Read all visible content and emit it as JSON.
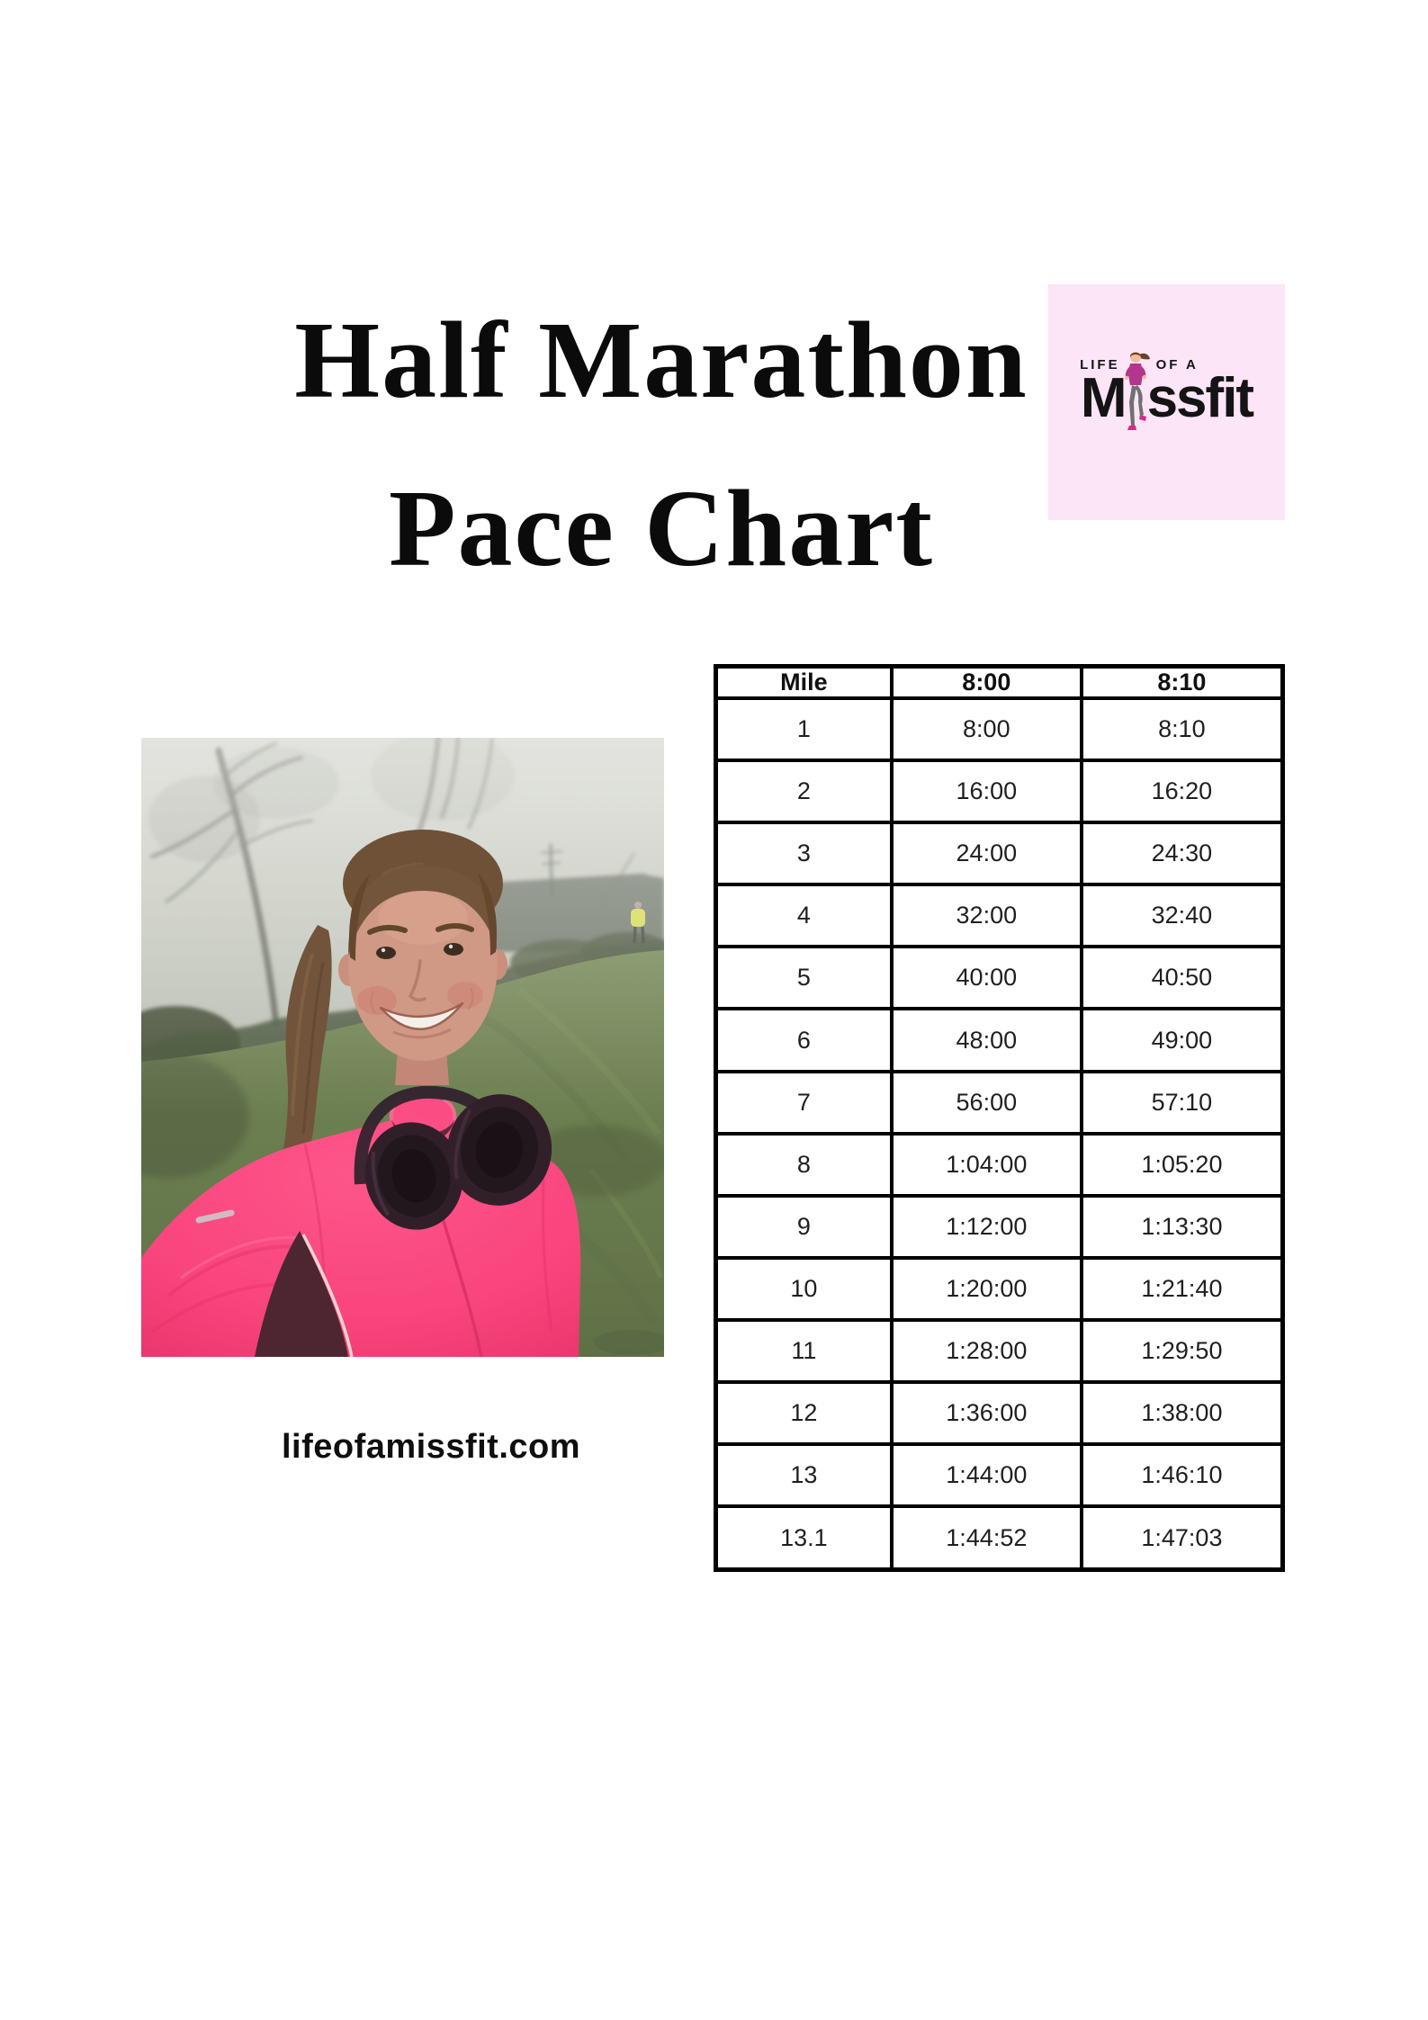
{
  "page": {
    "background": "#ffffff",
    "title_line1": "Half Marathon",
    "title_line2": "Pace Chart",
    "website": "lifeofamissfit.com"
  },
  "logo": {
    "background_color": "#fbe5f7",
    "life_text": "LIFE",
    "of_a_text": "OF A",
    "brand_m": "M",
    "brand_ssfit": "ssfit",
    "runner_icon": "running-woman-icon",
    "jacket_magenta": "#b2368e"
  },
  "photo": {
    "jacket_pink": "#f93f79",
    "grass_green": "#66794a",
    "sky_fog_gray": "#bfc3b7",
    "headphones_black": "#2a1823",
    "hi_vis_yellow": "#d8e14b"
  },
  "table": {
    "border_color": "#000000",
    "text_color": "#1f1f1f",
    "columns": [
      "Mile",
      "8:00",
      "8:10"
    ],
    "rows": [
      [
        "1",
        "8:00",
        "8:10"
      ],
      [
        "2",
        "16:00",
        "16:20"
      ],
      [
        "3",
        "24:00",
        "24:30"
      ],
      [
        "4",
        "32:00",
        "32:40"
      ],
      [
        "5",
        "40:00",
        "40:50"
      ],
      [
        "6",
        "48:00",
        "49:00"
      ],
      [
        "7",
        "56:00",
        "57:10"
      ],
      [
        "8",
        "1:04:00",
        "1:05:20"
      ],
      [
        "9",
        "1:12:00",
        "1:13:30"
      ],
      [
        "10",
        "1:20:00",
        "1:21:40"
      ],
      [
        "11",
        "1:28:00",
        "1:29:50"
      ],
      [
        "12",
        "1:36:00",
        "1:38:00"
      ],
      [
        "13",
        "1:44:00",
        "1:46:10"
      ],
      [
        "13.1",
        "1:44:52",
        "1:47:03"
      ]
    ]
  }
}
